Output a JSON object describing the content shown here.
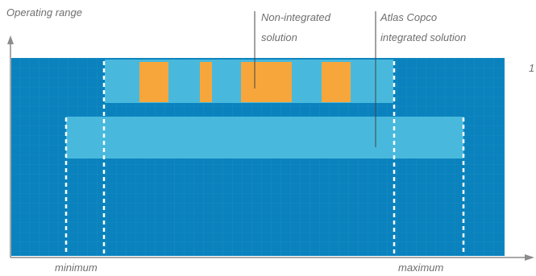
{
  "y_axis_label": "Operating range",
  "x_axis_labels": {
    "minimum": "minimum",
    "maximum": "maximum"
  },
  "callouts": {
    "non_integrated": {
      "line1": "Non-integrated",
      "line2": "solution"
    },
    "integrated": {
      "line1": "Atlas Copco",
      "line2": "integrated solution"
    }
  },
  "edge_glyph": "1",
  "colors": {
    "background": "#0a82bd",
    "grid": "#3aa0d3",
    "band": "#48b9dd",
    "segment": "#f7a63b",
    "boundary": "#ffffff",
    "axis": "#8c8c8c",
    "text": "#6e6e6e"
  }
}
